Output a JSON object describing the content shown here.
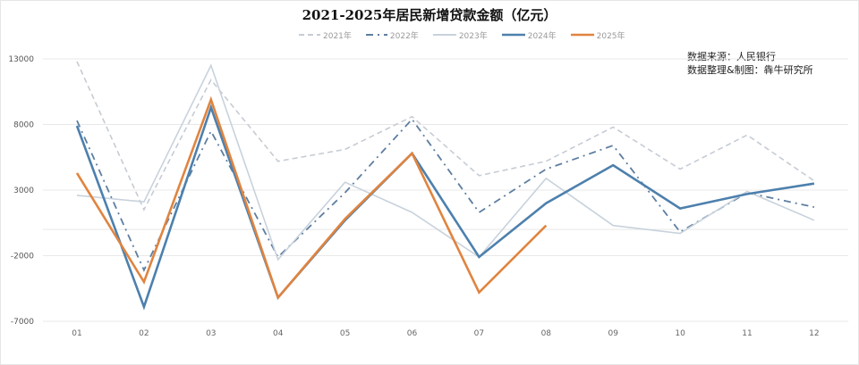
{
  "header": {
    "title": "2021-2025年居民新增贷款金额（亿元）"
  },
  "source": {
    "line1": "数据来源：人民银行",
    "line2": "数据整理&制图：犇牛研究所"
  },
  "legend": [
    {
      "label": "2021年",
      "color": "#c6ccd4",
      "dash": "6,4"
    },
    {
      "label": "2022年",
      "color": "#5e7ea0",
      "dash": "8,5,2,5"
    },
    {
      "label": "2023年",
      "color": "#c8d2dc",
      "dash": ""
    },
    {
      "label": "2024年",
      "color": "#4d80ad",
      "dash": ""
    },
    {
      "label": "2025年",
      "color": "#e0843f",
      "dash": ""
    }
  ],
  "chart_data": {
    "type": "line",
    "title": "2021-2025年居民新增贷款金额（亿元）",
    "xlabel": "",
    "ylabel": "",
    "categories": [
      "01",
      "02",
      "03",
      "04",
      "05",
      "06",
      "07",
      "08",
      "09",
      "10",
      "11",
      "12"
    ],
    "yticks": [
      13000,
      8000,
      3000,
      -2000,
      -7000
    ],
    "ylim": [
      -7000,
      13000
    ],
    "grid": true,
    "legend_position": "top",
    "series": [
      {
        "name": "2021年",
        "values": [
          12800,
          1500,
          11400,
          5200,
          6100,
          8600,
          4100,
          5200,
          7800,
          4600,
          7200,
          3700
        ]
      },
      {
        "name": "2022年",
        "values": [
          8300,
          -3100,
          7500,
          -2100,
          2800,
          8400,
          1300,
          4600,
          6400,
          -200,
          2800,
          1700
        ]
      },
      {
        "name": "2023年",
        "values": [
          2600,
          2100,
          12500,
          -2300,
          3600,
          1300,
          -2100,
          3900,
          300,
          -300,
          2900,
          700
        ]
      },
      {
        "name": "2024年",
        "values": [
          7900,
          -5900,
          9300,
          -5200,
          700,
          5800,
          -2100,
          2000,
          4900,
          1600,
          2700,
          3500
        ]
      },
      {
        "name": "2025年",
        "values": [
          4300,
          -4000,
          9900,
          -5200,
          800,
          5800,
          -4800,
          300
        ]
      }
    ],
    "annotations": [
      "数据来源：人民银行",
      "数据整理&制图：犇牛研究所"
    ]
  }
}
